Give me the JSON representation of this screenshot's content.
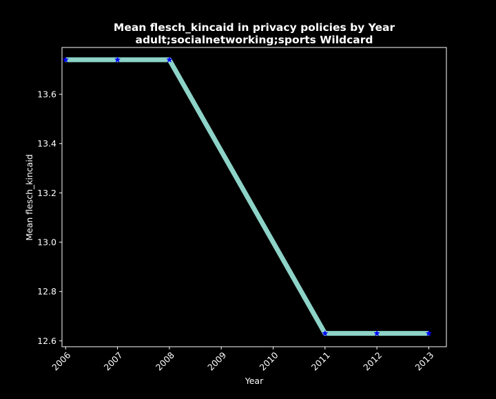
{
  "chart_data": {
    "type": "line",
    "title": "Mean flesch_kincaid in privacy policies by Year",
    "subtitle": "adult;socialnetworking;sports Wildcard",
    "xlabel": "Year",
    "ylabel": "Mean flesch_kincaid",
    "x": [
      2006,
      2007,
      2008,
      2011,
      2012,
      2013
    ],
    "series": [
      {
        "values": [
          13.74,
          13.74,
          13.74,
          12.63,
          12.63,
          12.63
        ]
      }
    ],
    "x_ticks": [
      2006,
      2007,
      2008,
      2009,
      2010,
      2011,
      2012,
      2013
    ],
    "y_ticks": [
      "12.6",
      "12.8",
      "13.0",
      "13.2",
      "13.4",
      "13.6"
    ],
    "xlim": [
      2005.93,
      2013.34
    ],
    "ylim": [
      12.576,
      13.79
    ],
    "grid": false,
    "legend": "none",
    "colors": {
      "background": "#000000",
      "line": "#8dd3c7",
      "marker": "#0000ff",
      "text": "#ffffff",
      "axes": "#ffffff"
    },
    "marker": "star"
  }
}
